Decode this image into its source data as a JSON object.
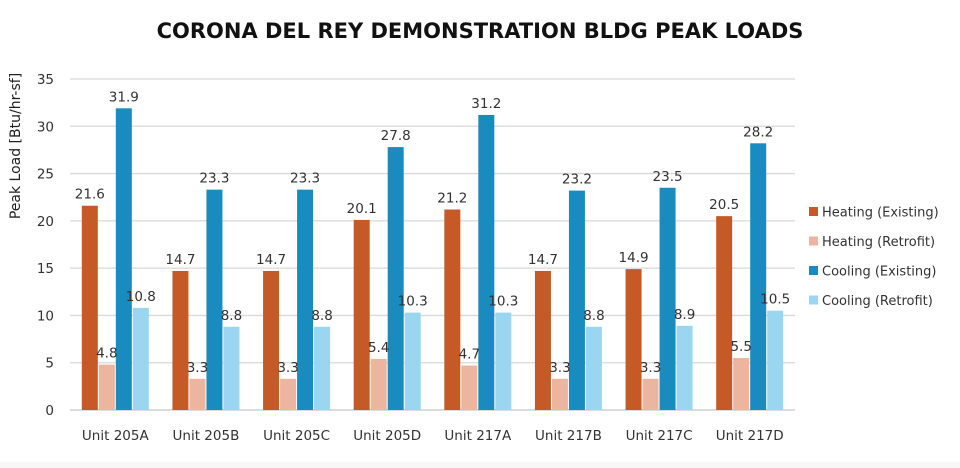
{
  "chart_data": {
    "type": "bar",
    "title": "CORONA DEL REY DEMONSTRATION BLDG PEAK LOADS",
    "xlabel": "",
    "ylabel": "Peak Load [Btu/hr-sf]",
    "ylim": [
      0,
      35
    ],
    "yticks": [
      0,
      5,
      10,
      15,
      20,
      25,
      30,
      35
    ],
    "grid": true,
    "legend_position": "right",
    "categories": [
      "Unit 205A",
      "Unit 205B",
      "Unit 205C",
      "Unit 205D",
      "Unit 217A",
      "Unit 217B",
      "Unit 217C",
      "Unit 217D"
    ],
    "series": [
      {
        "name": "Heating (Existing)",
        "color": "#c55a26",
        "values": [
          21.6,
          14.7,
          14.7,
          20.1,
          21.2,
          14.7,
          14.9,
          20.5
        ]
      },
      {
        "name": "Heating (Retrofit)",
        "color": "#ebb5a0",
        "values": [
          4.8,
          3.3,
          3.3,
          5.4,
          4.7,
          3.3,
          3.3,
          5.5
        ]
      },
      {
        "name": "Cooling (Existing)",
        "color": "#1a8bbf",
        "values": [
          31.9,
          23.3,
          23.3,
          27.8,
          31.2,
          23.2,
          23.5,
          28.2
        ]
      },
      {
        "name": "Cooling (Retrofit)",
        "color": "#9ad6f0",
        "values": [
          10.8,
          8.8,
          8.8,
          10.3,
          10.3,
          8.8,
          8.9,
          10.5
        ]
      }
    ]
  }
}
